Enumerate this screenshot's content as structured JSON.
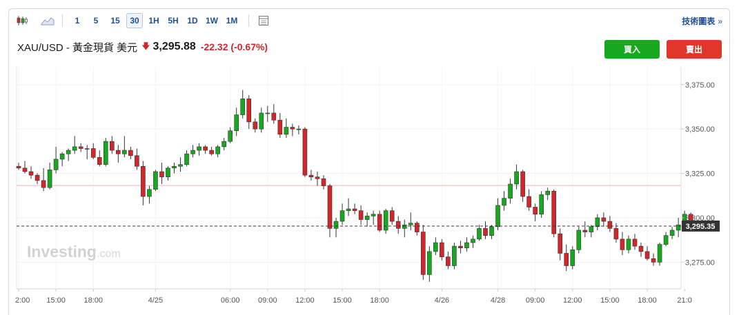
{
  "toolbar": {
    "intervals": [
      "1",
      "5",
      "15",
      "30",
      "1H",
      "5H",
      "1D",
      "1W",
      "1M"
    ],
    "active_interval": "30",
    "tech_chart_label": "技術圖表",
    "chevron": "»"
  },
  "quote": {
    "symbol": "XAU/USD - 黃金現貨 美元",
    "price": "3,295.88",
    "change": "-22.32",
    "change_pct": "(-0.67%)"
  },
  "actions": {
    "buy_label": "買入",
    "sell_label": "賣出"
  },
  "colors": {
    "up": "#17a81f",
    "down": "#d3262b",
    "accent": "#1e4f96"
  },
  "watermark": {
    "brand": "Investing",
    "suffix": ".com"
  },
  "chart_data": {
    "type": "candlestick",
    "y_ticks": [
      "3,375.00",
      "3,350.00",
      "3,325.00",
      "3,300.00",
      "3,275.00"
    ],
    "y_tick_values": [
      3375,
      3350,
      3325,
      3300,
      3275
    ],
    "ylim": [
      3260,
      3385
    ],
    "x_ticks": [
      {
        "label": "2:00",
        "i": 0
      },
      {
        "label": "15:00",
        "i": 6
      },
      {
        "label": "18:00",
        "i": 12
      },
      {
        "label": "4/25",
        "i": 22
      },
      {
        "label": "06:00",
        "i": 34
      },
      {
        "label": "09:00",
        "i": 40
      },
      {
        "label": "12:00",
        "i": 46
      },
      {
        "label": "15:00",
        "i": 52
      },
      {
        "label": "18:00",
        "i": 58
      },
      {
        "label": "4/26",
        "i": 68
      },
      {
        "label": "4/28",
        "i": 77
      },
      {
        "label": "09:00",
        "i": 83
      },
      {
        "label": "12:00",
        "i": 89
      },
      {
        "label": "15:00",
        "i": 95
      },
      {
        "label": "18:00",
        "i": 101
      },
      {
        "label": "21:0",
        "i": 107
      }
    ],
    "current_price": {
      "value": 3295.35,
      "label": "3,295.35"
    },
    "previous_close": 3318.2,
    "candles": [
      [
        3329,
        3331,
        3327,
        3328
      ],
      [
        3328,
        3332,
        3325,
        3326
      ],
      [
        3326,
        3329,
        3322,
        3324
      ],
      [
        3324,
        3325,
        3319,
        3321
      ],
      [
        3321,
        3328,
        3315,
        3317
      ],
      [
        3317,
        3331,
        3316,
        3327
      ],
      [
        3327,
        3340,
        3325,
        3333
      ],
      [
        3333,
        3337,
        3329,
        3336
      ],
      [
        3336,
        3339,
        3332,
        3338
      ],
      [
        3338,
        3346,
        3336,
        3340
      ],
      [
        3340,
        3342,
        3337,
        3339
      ],
      [
        3339,
        3341,
        3333,
        3339
      ],
      [
        3339,
        3342,
        3333,
        3334
      ],
      [
        3334,
        3338,
        3329,
        3330
      ],
      [
        3330,
        3345,
        3329,
        3343
      ],
      [
        3343,
        3346,
        3336,
        3338
      ],
      [
        3338,
        3341,
        3331,
        3336
      ],
      [
        3336,
        3346,
        3334,
        3338
      ],
      [
        3338,
        3340,
        3333,
        3335
      ],
      [
        3335,
        3339,
        3327,
        3329
      ],
      [
        3329,
        3332,
        3307,
        3312
      ],
      [
        3312,
        3318,
        3308,
        3316
      ],
      [
        3316,
        3327,
        3315,
        3326
      ],
      [
        3326,
        3331,
        3319,
        3323
      ],
      [
        3323,
        3329,
        3321,
        3328
      ],
      [
        3328,
        3331,
        3325,
        3329
      ],
      [
        3329,
        3334,
        3326,
        3330
      ],
      [
        3330,
        3338,
        3329,
        3336
      ],
      [
        3336,
        3341,
        3334,
        3338
      ],
      [
        3338,
        3342,
        3335,
        3340
      ],
      [
        3340,
        3341,
        3336,
        3338
      ],
      [
        3338,
        3340,
        3335,
        3336
      ],
      [
        3336,
        3341,
        3334,
        3340
      ],
      [
        3340,
        3345,
        3338,
        3343
      ],
      [
        3343,
        3351,
        3342,
        3349
      ],
      [
        3349,
        3362,
        3346,
        3358
      ],
      [
        3358,
        3372,
        3356,
        3367
      ],
      [
        3367,
        3369,
        3350,
        3354
      ],
      [
        3354,
        3356,
        3348,
        3350
      ],
      [
        3350,
        3362,
        3348,
        3359
      ],
      [
        3359,
        3363,
        3354,
        3359
      ],
      [
        3359,
        3364,
        3353,
        3355
      ],
      [
        3355,
        3359,
        3345,
        3347
      ],
      [
        3347,
        3356,
        3345,
        3351
      ],
      [
        3351,
        3353,
        3346,
        3350
      ],
      [
        3350,
        3352,
        3347,
        3350
      ],
      [
        3350,
        3351,
        3323,
        3324
      ],
      [
        3324,
        3327,
        3321,
        3323
      ],
      [
        3323,
        3326,
        3318,
        3322
      ],
      [
        3322,
        3324,
        3316,
        3318
      ],
      [
        3318,
        3319,
        3289,
        3294
      ],
      [
        3294,
        3300,
        3289,
        3298
      ],
      [
        3298,
        3308,
        3296,
        3304
      ],
      [
        3304,
        3311,
        3301,
        3305
      ],
      [
        3305,
        3308,
        3302,
        3304
      ],
      [
        3304,
        3307,
        3296,
        3299
      ],
      [
        3299,
        3303,
        3295,
        3301
      ],
      [
        3301,
        3304,
        3296,
        3302
      ],
      [
        3302,
        3304,
        3292,
        3293
      ],
      [
        3293,
        3305,
        3291,
        3304
      ],
      [
        3304,
        3306,
        3296,
        3298
      ],
      [
        3298,
        3301,
        3291,
        3294
      ],
      [
        3294,
        3299,
        3289,
        3296
      ],
      [
        3296,
        3303,
        3293,
        3297
      ],
      [
        3297,
        3298,
        3290,
        3292
      ],
      [
        3292,
        3296,
        3265,
        3268
      ],
      [
        3268,
        3284,
        3264,
        3281
      ],
      [
        3281,
        3289,
        3279,
        3286
      ],
      [
        3286,
        3288,
        3276,
        3278
      ],
      [
        3278,
        3281,
        3271,
        3273
      ],
      [
        3273,
        3286,
        3271,
        3284
      ],
      [
        3284,
        3287,
        3280,
        3283
      ],
      [
        3283,
        3289,
        3281,
        3286
      ],
      [
        3286,
        3290,
        3283,
        3288
      ],
      [
        3288,
        3296,
        3287,
        3294
      ],
      [
        3294,
        3298,
        3288,
        3290
      ],
      [
        3290,
        3296,
        3288,
        3295
      ],
      [
        3295,
        3311,
        3293,
        3307
      ],
      [
        3307,
        3315,
        3304,
        3311
      ],
      [
        3311,
        3322,
        3308,
        3319
      ],
      [
        3319,
        3330,
        3316,
        3326
      ],
      [
        3326,
        3327,
        3309,
        3312
      ],
      [
        3312,
        3316,
        3304,
        3306
      ],
      [
        3306,
        3308,
        3298,
        3302
      ],
      [
        3302,
        3315,
        3300,
        3313
      ],
      [
        3313,
        3317,
        3310,
        3315
      ],
      [
        3315,
        3316,
        3289,
        3291
      ],
      [
        3291,
        3294,
        3276,
        3280
      ],
      [
        3280,
        3285,
        3270,
        3273
      ],
      [
        3273,
        3284,
        3271,
        3282
      ],
      [
        3282,
        3295,
        3280,
        3293
      ],
      [
        3293,
        3298,
        3289,
        3292
      ],
      [
        3292,
        3296,
        3289,
        3295
      ],
      [
        3295,
        3302,
        3293,
        3300
      ],
      [
        3300,
        3303,
        3295,
        3298
      ],
      [
        3298,
        3301,
        3292,
        3294
      ],
      [
        3294,
        3297,
        3286,
        3288
      ],
      [
        3288,
        3292,
        3279,
        3282
      ],
      [
        3282,
        3290,
        3280,
        3288
      ],
      [
        3288,
        3291,
        3282,
        3284
      ],
      [
        3284,
        3286,
        3278,
        3281
      ],
      [
        3281,
        3284,
        3276,
        3277
      ],
      [
        3277,
        3280,
        3273,
        3275
      ],
      [
        3275,
        3286,
        3273,
        3285
      ],
      [
        3285,
        3292,
        3284,
        3290
      ],
      [
        3290,
        3295,
        3288,
        3293
      ],
      [
        3293,
        3300,
        3289,
        3296
      ],
      [
        3296,
        3304,
        3294,
        3302
      ],
      [
        3302,
        3303,
        3294,
        3296
      ]
    ]
  }
}
